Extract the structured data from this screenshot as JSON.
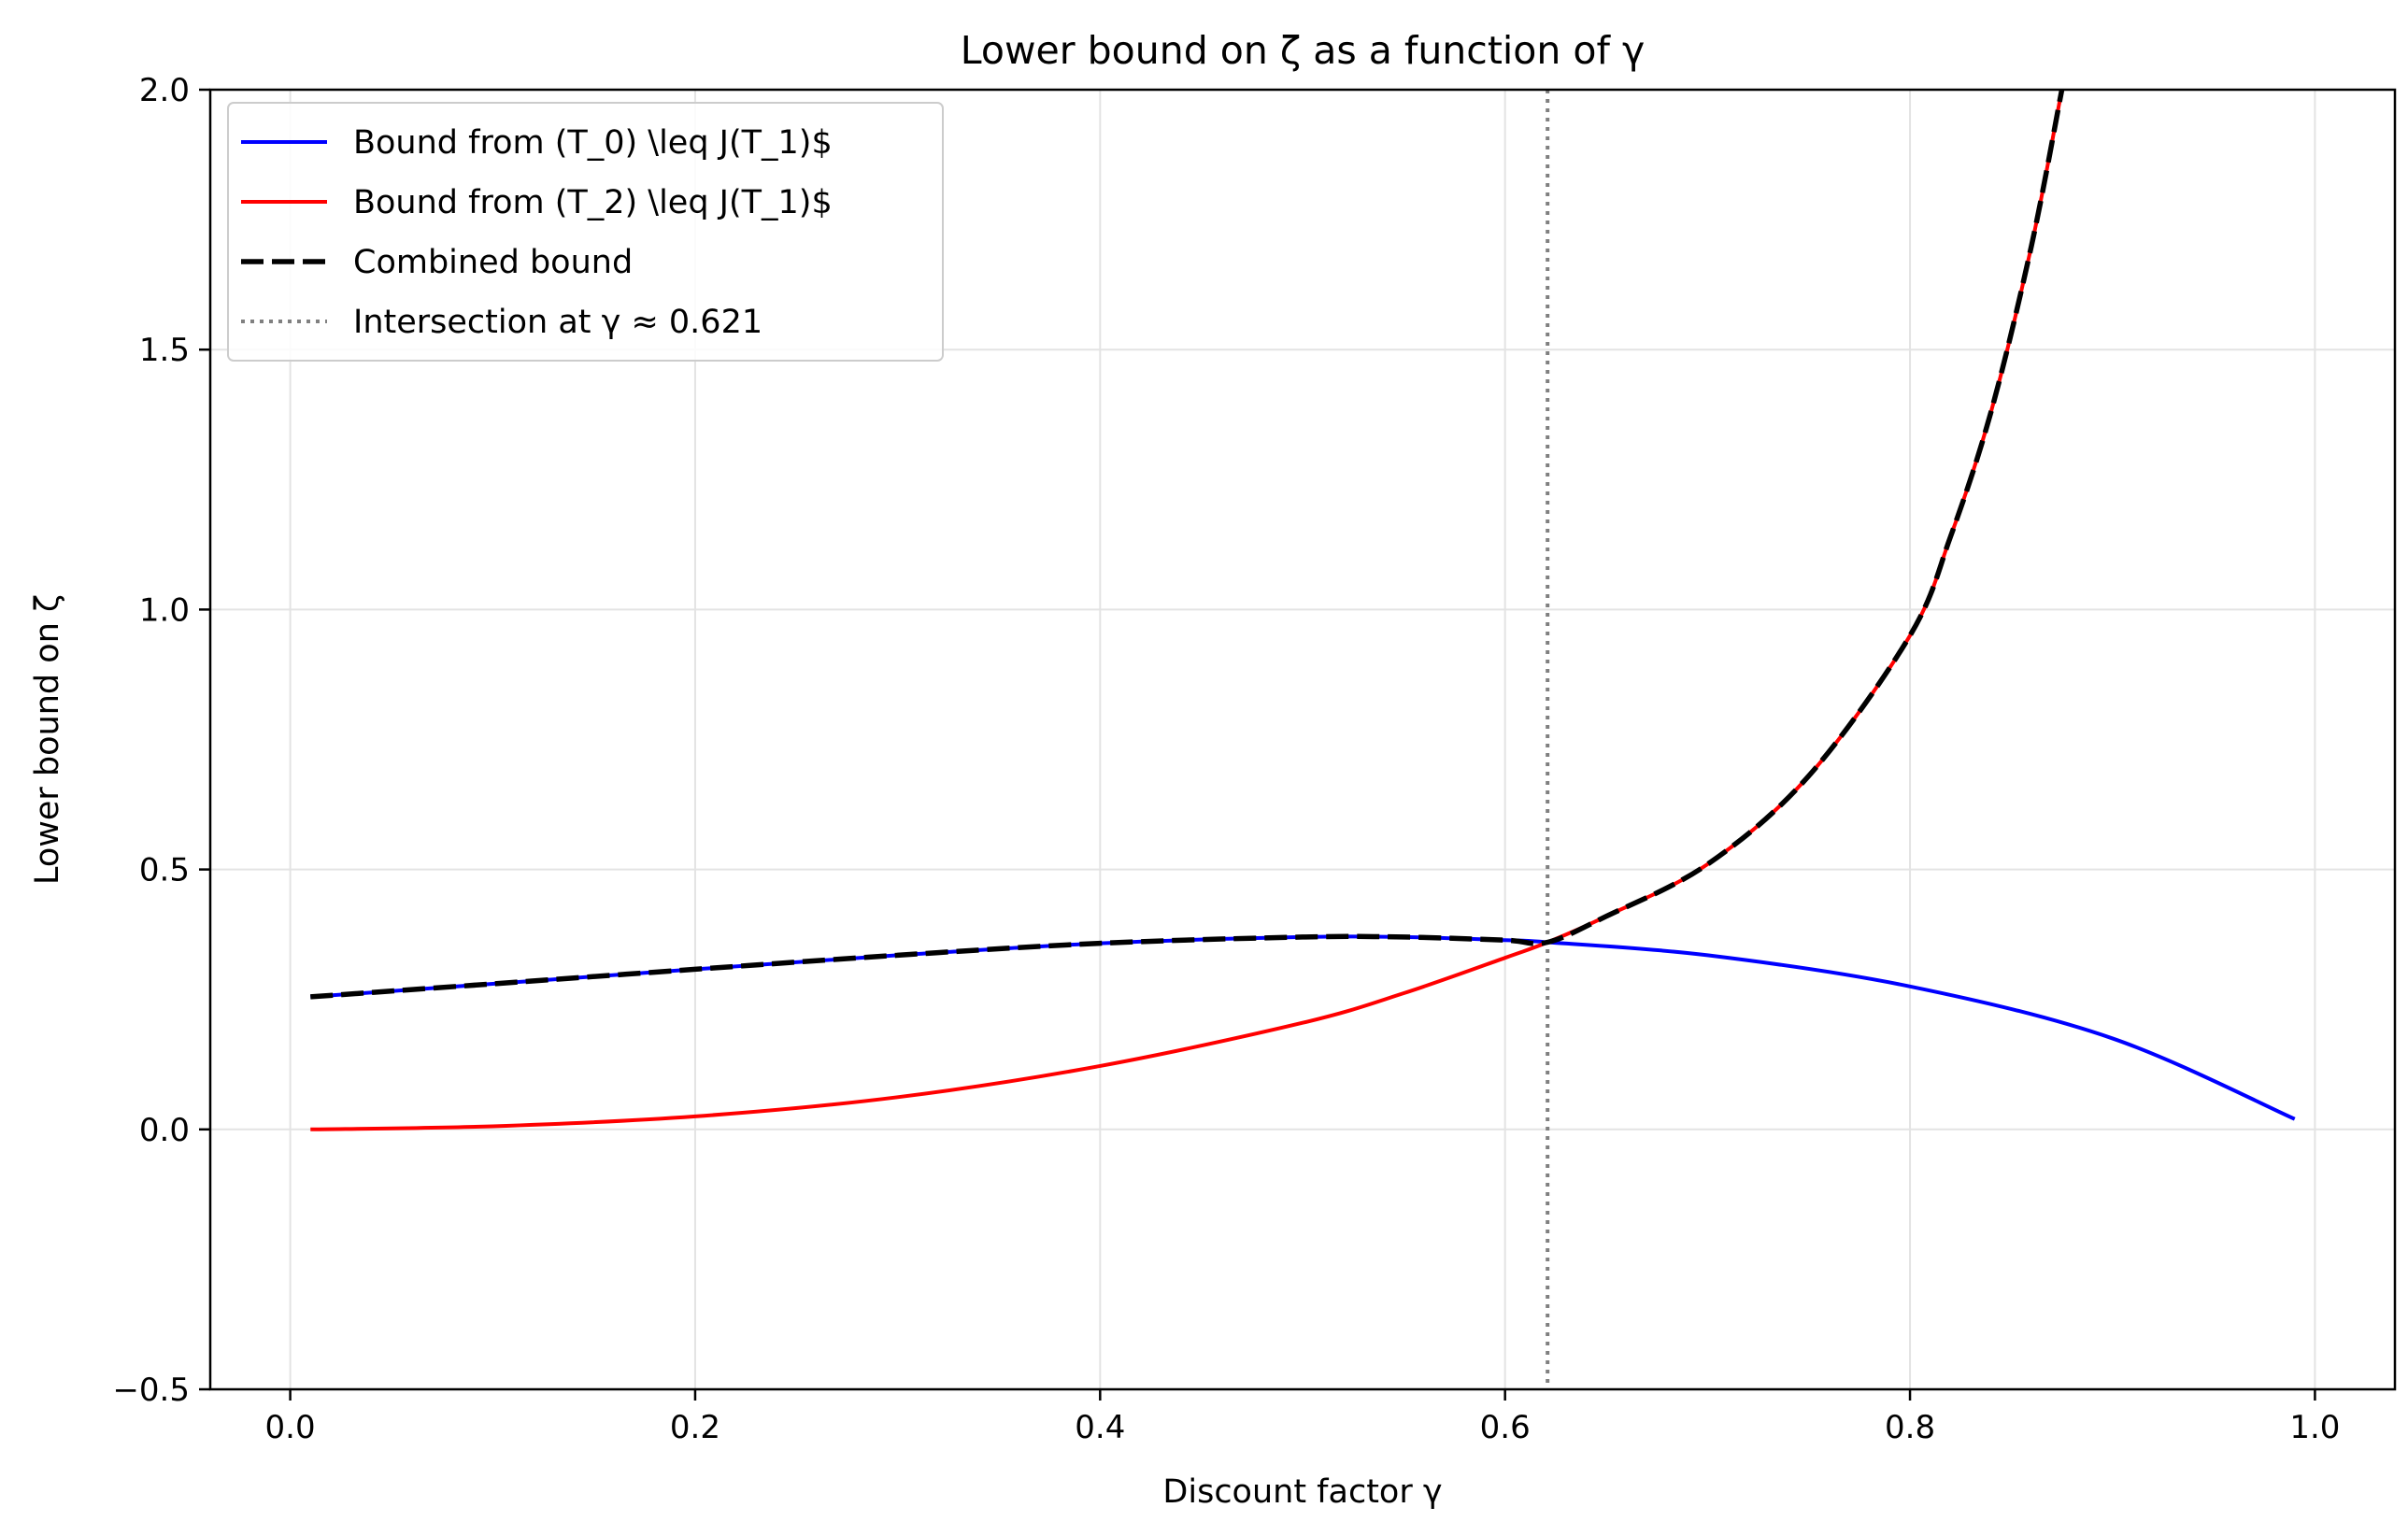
{
  "chart_data": {
    "type": "line",
    "title": "Lower bound on ζ as a function of γ",
    "xlabel": "Discount factor γ",
    "ylabel": "Lower bound on ζ",
    "xlim": [
      -0.0395,
      1.0395
    ],
    "ylim": [
      -0.5,
      2.0
    ],
    "xticks": [
      0.0,
      0.2,
      0.4,
      0.6,
      0.8,
      1.0
    ],
    "xtick_labels": [
      "0.0",
      "0.2",
      "0.4",
      "0.6",
      "0.8",
      "1.0"
    ],
    "yticks": [
      -0.5,
      0.0,
      0.5,
      1.0,
      1.5,
      2.0
    ],
    "ytick_labels": [
      "−0.5",
      "0.0",
      "0.5",
      "1.0",
      "1.5",
      "2.0"
    ],
    "grid": true,
    "legend_position": "upper-left",
    "series": [
      {
        "name": "Bound from (T_0) \\leq J(T_1)$",
        "color": "#0000ff",
        "style": "solid",
        "x": [
          0.01,
          0.1,
          0.2,
          0.3,
          0.4,
          0.5,
          0.55,
          0.6,
          0.621,
          0.7,
          0.8,
          0.9,
          0.99
        ],
        "y": [
          0.255,
          0.28,
          0.308,
          0.335,
          0.358,
          0.37,
          0.37,
          0.364,
          0.36,
          0.335,
          0.275,
          0.175,
          0.02
        ]
      },
      {
        "name": "Bound from (T_2) \\leq J(T_1)$",
        "color": "#ff0000",
        "style": "solid",
        "x": [
          0.01,
          0.1,
          0.2,
          0.3,
          0.4,
          0.5,
          0.55,
          0.6,
          0.621,
          0.65,
          0.7,
          0.75,
          0.8,
          0.82,
          0.84,
          0.86,
          0.875
        ],
        "y": [
          0.0,
          0.006,
          0.025,
          0.062,
          0.122,
          0.205,
          0.262,
          0.33,
          0.36,
          0.41,
          0.51,
          0.68,
          0.95,
          1.14,
          1.38,
          1.7,
          2.0
        ]
      },
      {
        "name": "Combined bound",
        "color": "#000000",
        "style": "dashed",
        "x": [
          0.01,
          0.1,
          0.2,
          0.3,
          0.4,
          0.5,
          0.55,
          0.6,
          0.621,
          0.65,
          0.7,
          0.75,
          0.8,
          0.82,
          0.84,
          0.86,
          0.875
        ],
        "y": [
          0.255,
          0.28,
          0.308,
          0.335,
          0.358,
          0.37,
          0.37,
          0.364,
          0.36,
          0.41,
          0.51,
          0.68,
          0.95,
          1.14,
          1.38,
          1.7,
          2.0
        ]
      }
    ],
    "vline": {
      "name": "Intersection at γ ≈ 0.621",
      "x": 0.621,
      "color": "#808080",
      "style": "dotted"
    }
  }
}
